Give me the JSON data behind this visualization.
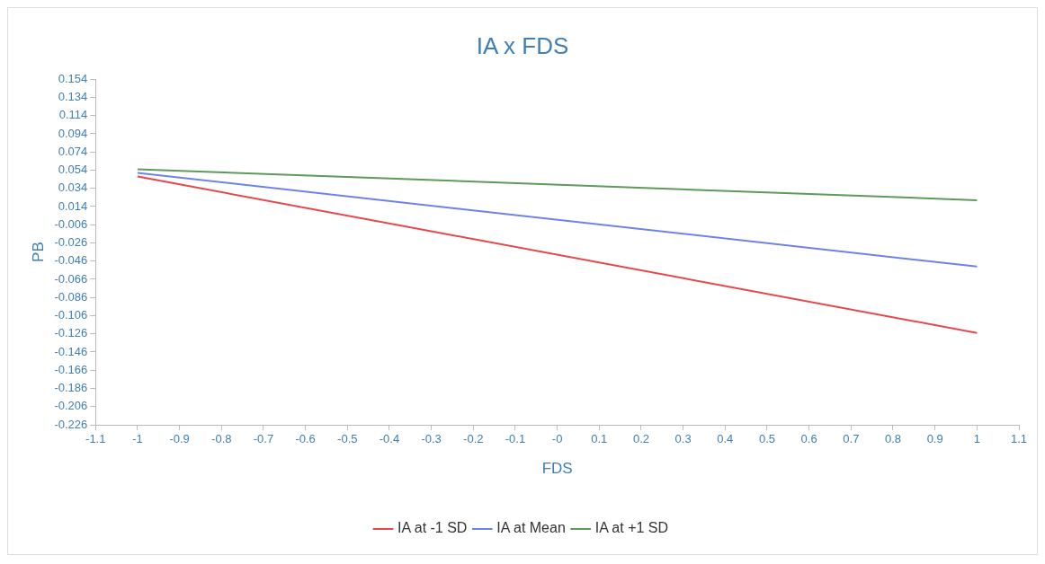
{
  "chart_data": {
    "type": "line",
    "title": "IA x FDS",
    "xlabel": "FDS",
    "ylabel": "PB",
    "x": [
      -1,
      1
    ],
    "series": [
      {
        "name": "IA at -1 SD",
        "color": "#e8474a",
        "values": [
          0.047,
          -0.125
        ]
      },
      {
        "name": "IA at Mean",
        "color": "#6f82ec",
        "values": [
          0.051,
          -0.052
        ]
      },
      {
        "name": "IA at +1 SD",
        "color": "#5e9a5a",
        "values": [
          0.055,
          0.021
        ]
      }
    ],
    "xlim": [
      -1.1,
      1.1
    ],
    "xticks": [
      -1.1,
      -1,
      -0.9,
      -0.8,
      -0.7,
      -0.6,
      -0.5,
      -0.4,
      -0.3,
      -0.2,
      -0.1,
      {
        "value": 0,
        "label": "-0"
      },
      0.1,
      0.2,
      0.3,
      0.4,
      0.5,
      0.6,
      0.7,
      0.8,
      0.9,
      1,
      1.1
    ],
    "ylim": [
      -0.226,
      0.154
    ],
    "yticks": [
      0.154,
      0.134,
      0.114,
      0.094,
      0.074,
      0.054,
      0.034,
      0.014,
      -0.006,
      -0.026,
      -0.046,
      -0.066,
      -0.086,
      -0.106,
      -0.126,
      -0.146,
      -0.166,
      -0.186,
      -0.206,
      -0.226
    ],
    "grid": false,
    "legend": "bottom",
    "marker": "none",
    "line_style": "solid"
  }
}
